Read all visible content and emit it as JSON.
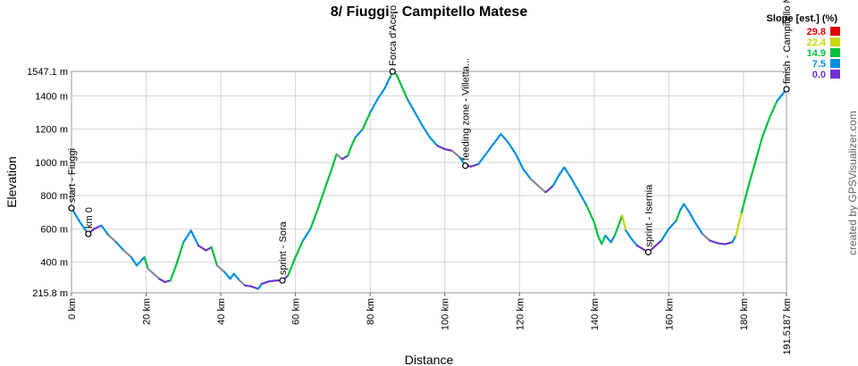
{
  "chart_data": {
    "type": "area",
    "title": "8/ Fiuggi - Campitello Matese",
    "xlabel": "Distance",
    "ylabel": "Elevation",
    "xlim": [
      0,
      191.5187
    ],
    "ylim": [
      215.8,
      1547.1
    ],
    "x_ticks": [
      {
        "value": 0,
        "label": "0 km"
      },
      {
        "value": 20,
        "label": "20 km"
      },
      {
        "value": 40,
        "label": "40 km"
      },
      {
        "value": 60,
        "label": "60 km"
      },
      {
        "value": 80,
        "label": "80 km"
      },
      {
        "value": 100,
        "label": "100 km"
      },
      {
        "value": 120,
        "label": "120 km"
      },
      {
        "value": 140,
        "label": "140 km"
      },
      {
        "value": 160,
        "label": "160 km"
      },
      {
        "value": 180,
        "label": "180 km"
      },
      {
        "value": 191.5187,
        "label": "191.5187 km"
      }
    ],
    "y_ticks": [
      {
        "value": 215.8,
        "label": "215.8 m"
      },
      {
        "value": 400,
        "label": "400 m"
      },
      {
        "value": 600,
        "label": "600 m"
      },
      {
        "value": 800,
        "label": "800 m"
      },
      {
        "value": 1000,
        "label": "1000 m"
      },
      {
        "value": 1200,
        "label": "1200 m"
      },
      {
        "value": 1400,
        "label": "1400 m"
      },
      {
        "value": 1547.1,
        "label": "1547.1 m"
      }
    ],
    "grid": true,
    "profile": [
      [
        0,
        725
      ],
      [
        2,
        650
      ],
      [
        3.5,
        600
      ],
      [
        4.5,
        570
      ],
      [
        6,
        600
      ],
      [
        8,
        620
      ],
      [
        10,
        560
      ],
      [
        12,
        520
      ],
      [
        14,
        470
      ],
      [
        16,
        430
      ],
      [
        17.5,
        380
      ],
      [
        19.5,
        430
      ],
      [
        20.5,
        360
      ],
      [
        22,
        330
      ],
      [
        23.5,
        300
      ],
      [
        25,
        280
      ],
      [
        26.5,
        290
      ],
      [
        28,
        380
      ],
      [
        30,
        520
      ],
      [
        32,
        590
      ],
      [
        34,
        500
      ],
      [
        36,
        470
      ],
      [
        37.5,
        490
      ],
      [
        39,
        380
      ],
      [
        41,
        340
      ],
      [
        42.5,
        300
      ],
      [
        43.5,
        330
      ],
      [
        45,
        290
      ],
      [
        46.5,
        260
      ],
      [
        48,
        255
      ],
      [
        50,
        240
      ],
      [
        51,
        270
      ],
      [
        53,
        285
      ],
      [
        55,
        290
      ],
      [
        56.5,
        290
      ],
      [
        58,
        320
      ],
      [
        60,
        430
      ],
      [
        62,
        530
      ],
      [
        64,
        600
      ],
      [
        66,
        720
      ],
      [
        68,
        850
      ],
      [
        70,
        980
      ],
      [
        71,
        1050
      ],
      [
        72.5,
        1020
      ],
      [
        74,
        1040
      ],
      [
        75,
        1100
      ],
      [
        76,
        1150
      ],
      [
        78,
        1200
      ],
      [
        80,
        1300
      ],
      [
        82,
        1380
      ],
      [
        84,
        1450
      ],
      [
        85.5,
        1520
      ],
      [
        86,
        1547
      ],
      [
        87,
        1530
      ],
      [
        88,
        1480
      ],
      [
        90,
        1380
      ],
      [
        92,
        1300
      ],
      [
        94,
        1220
      ],
      [
        96,
        1150
      ],
      [
        98,
        1100
      ],
      [
        100,
        1080
      ],
      [
        102,
        1070
      ],
      [
        104,
        1030
      ],
      [
        105.5,
        980
      ],
      [
        107,
        975
      ],
      [
        109,
        990
      ],
      [
        111,
        1050
      ],
      [
        113,
        1110
      ],
      [
        115,
        1170
      ],
      [
        117,
        1120
      ],
      [
        119,
        1050
      ],
      [
        121,
        960
      ],
      [
        123,
        900
      ],
      [
        125,
        860
      ],
      [
        127,
        820
      ],
      [
        129,
        860
      ],
      [
        130.5,
        920
      ],
      [
        132,
        970
      ],
      [
        134,
        900
      ],
      [
        136,
        820
      ],
      [
        138,
        740
      ],
      [
        140,
        640
      ],
      [
        141,
        560
      ],
      [
        142,
        510
      ],
      [
        143,
        560
      ],
      [
        144.5,
        520
      ],
      [
        145.5,
        560
      ],
      [
        146.5,
        620
      ],
      [
        147.5,
        680
      ],
      [
        148.5,
        590
      ],
      [
        150,
        540
      ],
      [
        151.5,
        500
      ],
      [
        153,
        480
      ],
      [
        154.5,
        460
      ],
      [
        156,
        490
      ],
      [
        158,
        530
      ],
      [
        160,
        600
      ],
      [
        162,
        650
      ],
      [
        163,
        710
      ],
      [
        164,
        750
      ],
      [
        165.5,
        700
      ],
      [
        167,
        640
      ],
      [
        169,
        570
      ],
      [
        171,
        530
      ],
      [
        173,
        515
      ],
      [
        175,
        508
      ],
      [
        177,
        520
      ],
      [
        178,
        560
      ],
      [
        179.5,
        700
      ],
      [
        181,
        830
      ],
      [
        183,
        990
      ],
      [
        185,
        1150
      ],
      [
        187,
        1270
      ],
      [
        189,
        1370
      ],
      [
        191.5187,
        1440
      ]
    ],
    "waypoints": [
      {
        "x": 0,
        "y": 725,
        "label": "start - Fiuggi"
      },
      {
        "x": 4.5,
        "y": 570,
        "label": "km 0"
      },
      {
        "x": 56.5,
        "y": 290,
        "label": "sprint - Sora"
      },
      {
        "x": 86,
        "y": 1547,
        "label": "Forca d'Acero"
      },
      {
        "x": 105.5,
        "y": 980,
        "label": "feeding zone - Villetta..."
      },
      {
        "x": 154.5,
        "y": 460,
        "label": "sprint - Isernia"
      },
      {
        "x": 191.5187,
        "y": 1440,
        "label": "finish - Campitello M..."
      }
    ],
    "legend": {
      "position": "top-right",
      "title": "Slope [est.] (%)",
      "entries": [
        {
          "value": "29.8",
          "color": "#e00000"
        },
        {
          "value": "22.4",
          "color": "#c8d800"
        },
        {
          "value": "14.9",
          "color": "#00c040"
        },
        {
          "value": "7.5",
          "color": "#0090e0"
        },
        {
          "value": "0.0",
          "color": "#7030d0"
        }
      ]
    }
  },
  "credit": "created by GPSVisualizer.com"
}
